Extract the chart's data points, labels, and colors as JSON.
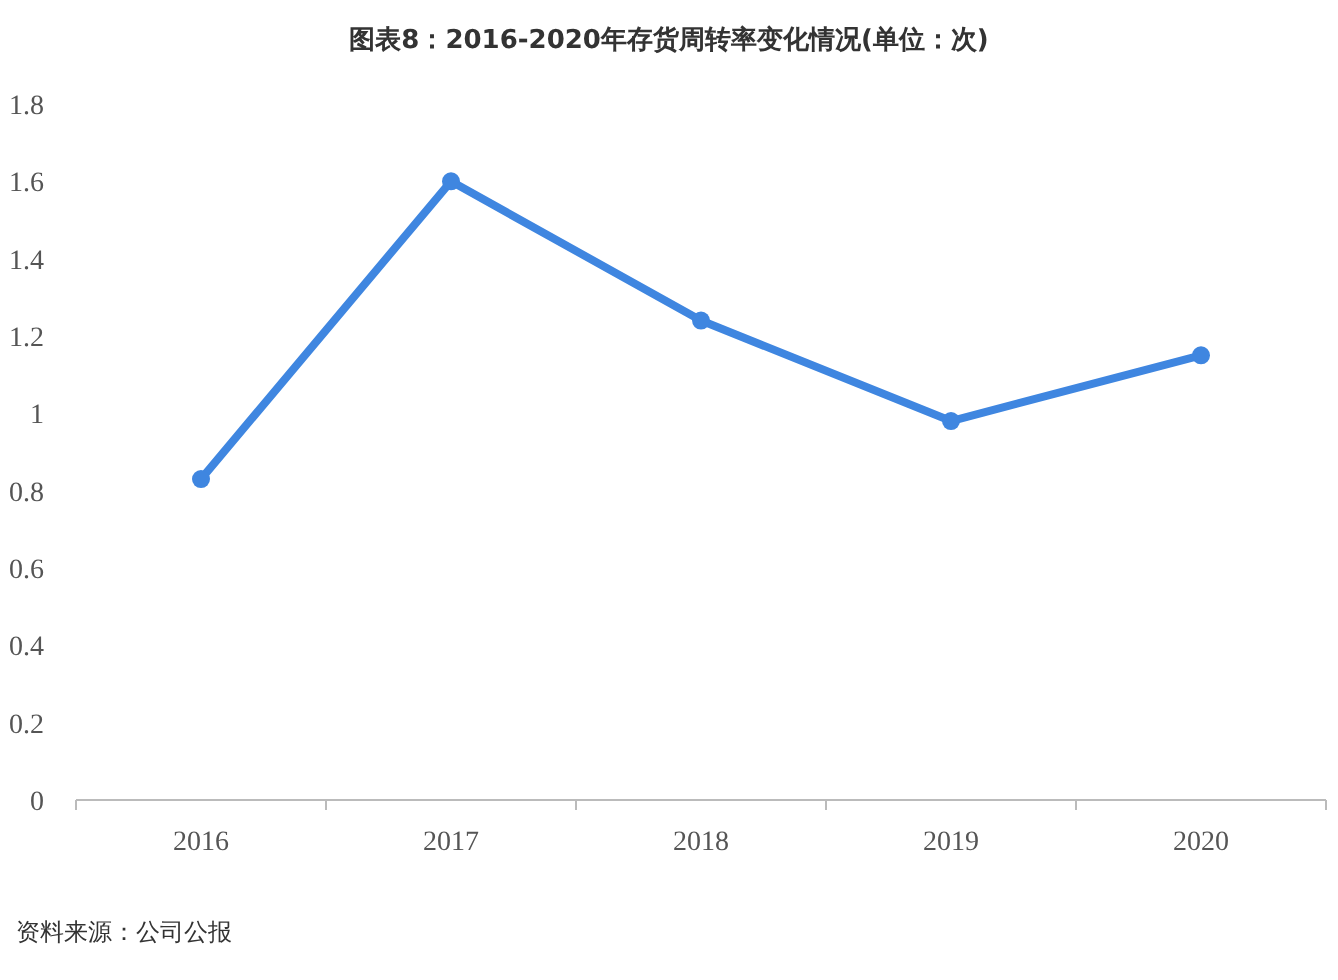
{
  "chart_data": {
    "type": "line",
    "title": "图表8：2016-2020年存货周转率变化情况(单位：次)",
    "annotations": [
      "资料来源：公司公报"
    ],
    "categories": [
      "2016",
      "2017",
      "2018",
      "2019",
      "2020"
    ],
    "series": [
      {
        "color": "#3f86e0",
        "values": [
          0.83,
          1.6,
          1.24,
          0.98,
          1.15
        ]
      }
    ],
    "ylim": [
      0,
      1.8
    ],
    "yticks": [
      0,
      0.2,
      0.4,
      0.6,
      0.8,
      1,
      1.2,
      1.4,
      1.6,
      1.8
    ],
    "marker": "circle",
    "line_style": "solid"
  }
}
